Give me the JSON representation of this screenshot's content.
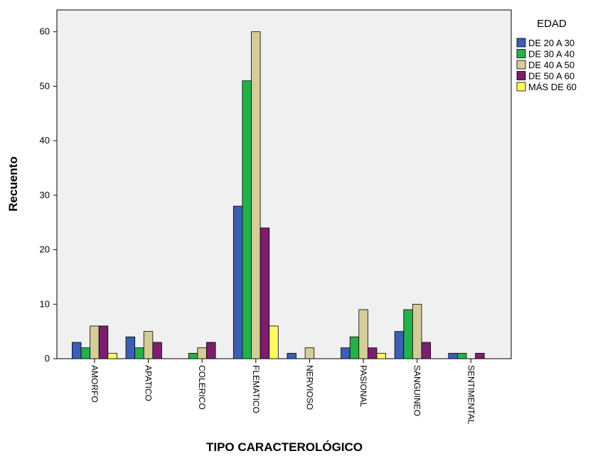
{
  "chart_data": {
    "type": "bar",
    "xlabel": "TIPO CARACTEROLÓGICO",
    "ylabel": "Recuento",
    "ylim": [
      0,
      64
    ],
    "yticks": [
      0,
      10,
      20,
      30,
      40,
      50,
      60
    ],
    "grid": false,
    "legend_title": "EDAD",
    "legend_position": "top-right",
    "categories": [
      "AMORFO",
      "APATICO",
      "COLERICO",
      "FLEMATICO",
      "NERVIOSO",
      "PASIONAL",
      "SANGUINEO",
      "SENTIMENTAL"
    ],
    "series": [
      {
        "name": "DE 20 A 30",
        "color": "#3a5fb5",
        "values": [
          3,
          4,
          0,
          28,
          1,
          2,
          5,
          1
        ]
      },
      {
        "name": "DE 30 A 40",
        "color": "#27b04a",
        "values": [
          2,
          2,
          1,
          51,
          0,
          4,
          9,
          1
        ]
      },
      {
        "name": "DE 40 A 50",
        "color": "#d4cd98",
        "values": [
          6,
          5,
          2,
          60,
          2,
          9,
          10,
          0
        ]
      },
      {
        "name": "DE 50 A 60",
        "color": "#7c1e6e",
        "values": [
          6,
          3,
          3,
          24,
          0,
          2,
          3,
          1
        ]
      },
      {
        "name": "MÁS DE 60",
        "color": "#fbfb5e",
        "values": [
          1,
          0,
          0,
          6,
          0,
          1,
          0,
          0
        ]
      }
    ],
    "plot_background": "#f0f0f0"
  }
}
